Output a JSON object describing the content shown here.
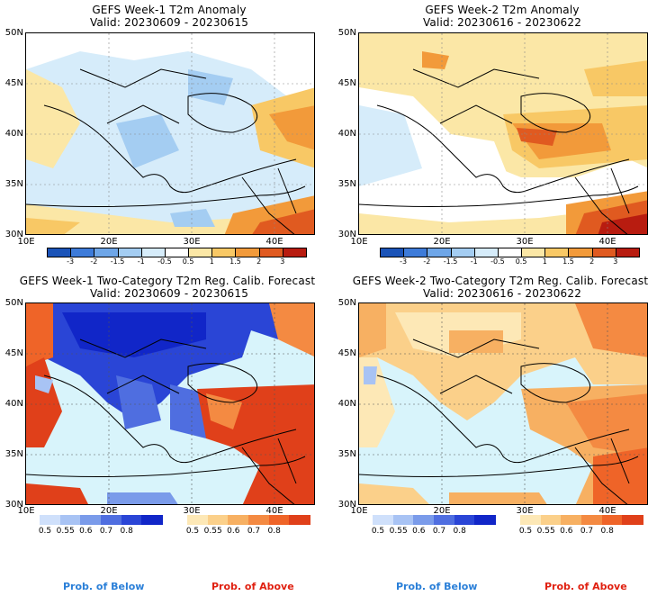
{
  "panels": [
    {
      "title": "GEFS Week-1 T2m Anomaly",
      "valid": "Valid: 20230609 - 20230615"
    },
    {
      "title": "GEFS Week-2 T2m Anomaly",
      "valid": "Valid: 20230616 - 20230622"
    },
    {
      "title": "GEFS Week-1 Two-Category T2m Reg. Calib. Forecast",
      "valid": "Valid: 20230609 - 20230615"
    },
    {
      "title": "GEFS Week-2 Two-Category T2m Reg. Calib. Forecast",
      "valid": "Valid: 20230616 - 20230622"
    }
  ],
  "axes": {
    "lat_top": [
      "50N",
      "45N",
      "40N",
      "35N",
      "30N"
    ],
    "lon_ticks": [
      "10E",
      "20E",
      "30E",
      "40E"
    ]
  },
  "anomaly_scale": {
    "ticks": [
      "-3",
      "-2",
      "-1.5",
      "-1",
      "-0.5",
      "0.5",
      "1",
      "1.5",
      "2",
      "3"
    ],
    "colors": [
      "#1a53b8",
      "#3d7bd9",
      "#6ea6e8",
      "#a4cdf2",
      "#d6ecfa",
      "#ffffff",
      "#fbe7a6",
      "#f8c865",
      "#f29a3a",
      "#e05a20",
      "#b81c10"
    ]
  },
  "prob_scale": {
    "ticks": [
      "0.5",
      "0.55",
      "0.6",
      "0.7",
      "0.8"
    ],
    "below_colors": [
      "#cfe0fb",
      "#a8c3f4",
      "#7a9bea",
      "#4f6ee0",
      "#2a45d6",
      "#1126c8"
    ],
    "above_colors": [
      "#fde8b6",
      "#fbd08a",
      "#f7b062",
      "#f48a42",
      "#ef6428",
      "#e0401a"
    ]
  },
  "captions": {
    "below": "Prob. of Below",
    "above": "Prob. of Above",
    "below_color": "#2a7fd8",
    "above_color": "#e02010"
  }
}
